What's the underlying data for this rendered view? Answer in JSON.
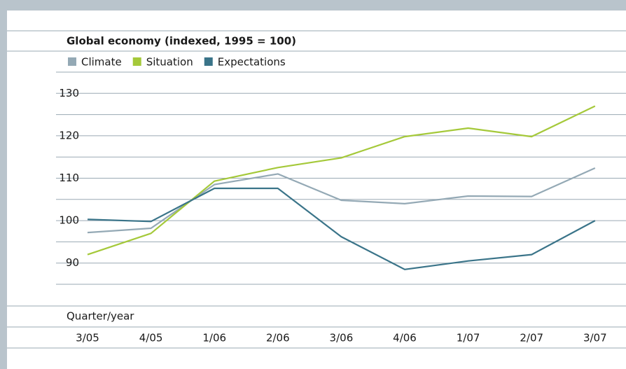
{
  "chart_data": {
    "type": "line",
    "title": "Global economy (indexed, 1995 = 100)",
    "x_label": "Quarter/year",
    "categories": [
      "3/05",
      "4/05",
      "1/06",
      "2/06",
      "3/06",
      "4/06",
      "1/07",
      "2/07",
      "3/07"
    ],
    "series": [
      {
        "name": "Climate",
        "color": "#94a9b5",
        "values": [
          97.2,
          98.2,
          108.5,
          111,
          104.8,
          104,
          105.8,
          105.7,
          112.4
        ]
      },
      {
        "name": "Situation",
        "color": "#a5c93a",
        "values": [
          92,
          97,
          109.3,
          112.5,
          114.8,
          119.8,
          121.8,
          119.8,
          127
        ]
      },
      {
        "name": "Expectations",
        "color": "#3a7489",
        "values": [
          100.3,
          99.8,
          107.6,
          107.6,
          96.2,
          88.5,
          90.5,
          92,
          100
        ]
      }
    ],
    "ylim": [
      85,
      135
    ],
    "yticks": [
      90,
      100,
      110,
      120,
      130
    ],
    "minor_yticks": [
      85,
      95,
      105,
      115,
      125,
      135
    ],
    "grid": true
  }
}
